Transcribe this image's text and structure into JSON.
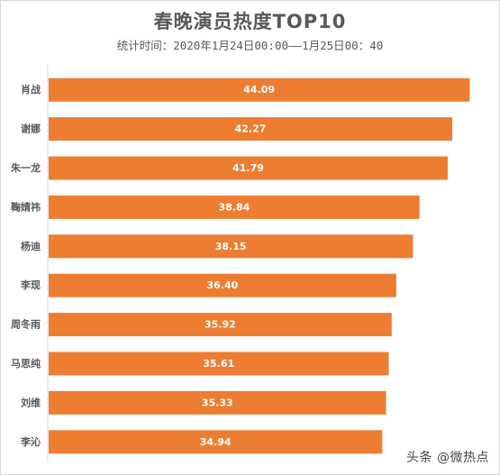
{
  "title": "春晚演员热度TOP10",
  "subtitle": "统计时间：2020年1月24日00:00——1月25日00：40",
  "watermark": "头条 @微热点",
  "colors": {
    "bar": "#ED7D31",
    "label": "#ffffff",
    "category": "#595959",
    "axis": "#d9d9d9"
  },
  "chart_data": {
    "type": "bar",
    "orientation": "horizontal",
    "categories": [
      "肖战",
      "谢娜",
      "朱一龙",
      "鞠婧祎",
      "杨迪",
      "李现",
      "周冬雨",
      "马思纯",
      "刘维",
      "李沁"
    ],
    "values": [
      44.09,
      42.27,
      41.79,
      38.84,
      38.15,
      36.4,
      35.92,
      35.61,
      35.33,
      34.94
    ],
    "value_labels": [
      "44.09",
      "42.27",
      "41.79",
      "38.84",
      "38.15",
      "36.40",
      "35.92",
      "35.61",
      "35.33",
      "34.94"
    ],
    "title": "春晚演员热度TOP10",
    "xlabel": "",
    "ylabel": "",
    "xlim": [
      0,
      45
    ],
    "grid": false,
    "legend": "none"
  }
}
